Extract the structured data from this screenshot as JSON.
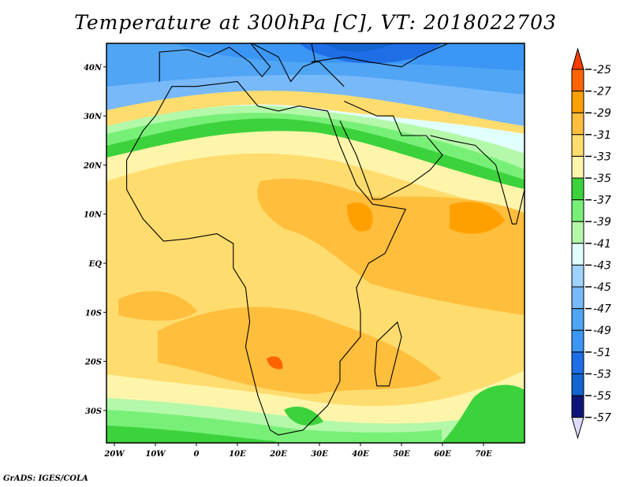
{
  "title": "Temperature at 300hPa [C], VT: 2018022703",
  "footer": "GrADS: IGES/COLA",
  "chart_data": {
    "type": "heatmap",
    "title": "Temperature at 300hPa [C], VT: 2018022703",
    "variable": "Temperature at 300hPa",
    "units": "C",
    "valid_time": "2018022703",
    "lon_range": [
      -22,
      80
    ],
    "lat_range": [
      -36.5,
      45
    ],
    "x_ticks": [
      {
        "value": -20,
        "label": "20W"
      },
      {
        "value": -10,
        "label": "10W"
      },
      {
        "value": 0,
        "label": "0"
      },
      {
        "value": 10,
        "label": "10E"
      },
      {
        "value": 20,
        "label": "20E"
      },
      {
        "value": 30,
        "label": "30E"
      },
      {
        "value": 40,
        "label": "40E"
      },
      {
        "value": 50,
        "label": "50E"
      },
      {
        "value": 60,
        "label": "60E"
      },
      {
        "value": 70,
        "label": "70E"
      }
    ],
    "y_ticks": [
      {
        "value": 40,
        "label": "40N"
      },
      {
        "value": 30,
        "label": "30N"
      },
      {
        "value": 20,
        "label": "20N"
      },
      {
        "value": 10,
        "label": "10N"
      },
      {
        "value": 0,
        "label": "EQ"
      },
      {
        "value": -10,
        "label": "10S"
      },
      {
        "value": -20,
        "label": "20S"
      },
      {
        "value": -30,
        "label": "30S"
      }
    ],
    "colorbar": {
      "levels": [
        "-25",
        "-27",
        "-29",
        "-31",
        "-33",
        "-35",
        "-37",
        "-39",
        "-41",
        "-43",
        "-45",
        "-47",
        "-49",
        "-51",
        "-53",
        "-55",
        "-57"
      ],
      "colors": [
        "#ff6400",
        "#ffa000",
        "#ffbe3c",
        "#ffdc6e",
        "#fff5aa",
        "#3cd23c",
        "#78f078",
        "#b4f8aa",
        "#e1ffff",
        "#a0d2ff",
        "#78b9fa",
        "#50a5f5",
        "#3c96f5",
        "#1e6ee6",
        "#1464d2",
        "#0f1478"
      ],
      "over_color": "#ff3c00",
      "under_color": "#dcdcff"
    }
  }
}
